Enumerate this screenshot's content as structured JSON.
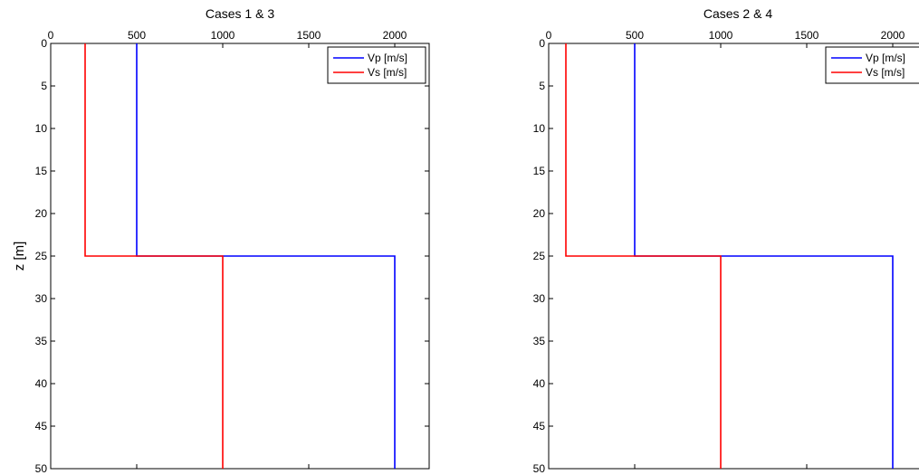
{
  "chart_data": [
    {
      "type": "line",
      "title": "Cases 1 & 3",
      "xlabel": "",
      "ylabel": "z [m]",
      "xlim": [
        0,
        2200
      ],
      "ylim": [
        0,
        50
      ],
      "y_reversed": true,
      "x_axis_location": "top",
      "x_ticks": [
        0,
        500,
        1000,
        1500,
        2000
      ],
      "y_ticks": [
        0,
        5,
        10,
        15,
        20,
        25,
        30,
        35,
        40,
        45,
        50
      ],
      "grid": false,
      "legend_location": "top-right",
      "series": [
        {
          "name": "Vp [m/s]",
          "color": "#0000ff",
          "x": [
            500,
            500,
            2000,
            2000
          ],
          "y": [
            0,
            25,
            25,
            50
          ]
        },
        {
          "name": "Vs [m/s]",
          "color": "#ff0000",
          "x": [
            200,
            200,
            1000,
            1000
          ],
          "y": [
            0,
            25,
            25,
            50
          ]
        }
      ]
    },
    {
      "type": "line",
      "title": "Cases 2 & 4",
      "xlabel": "",
      "ylabel": "",
      "xlim": [
        0,
        2200
      ],
      "ylim": [
        0,
        50
      ],
      "y_reversed": true,
      "x_axis_location": "top",
      "x_ticks": [
        0,
        500,
        1000,
        1500,
        2000
      ],
      "y_ticks": [
        0,
        5,
        10,
        15,
        20,
        25,
        30,
        35,
        40,
        45,
        50
      ],
      "grid": false,
      "legend_location": "top-right",
      "series": [
        {
          "name": "Vp [m/s]",
          "color": "#0000ff",
          "x": [
            500,
            500,
            2000,
            2000
          ],
          "y": [
            0,
            25,
            25,
            50
          ]
        },
        {
          "name": "Vs [m/s]",
          "color": "#ff0000",
          "x": [
            100,
            100,
            1000,
            1000
          ],
          "y": [
            0,
            25,
            25,
            50
          ]
        }
      ]
    }
  ]
}
